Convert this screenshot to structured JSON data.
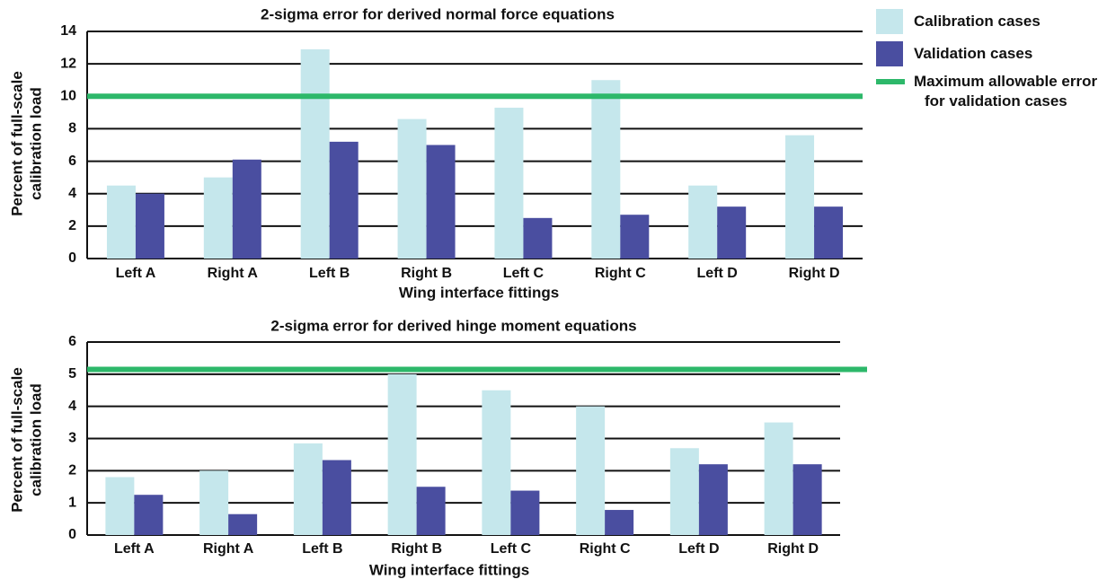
{
  "chart_data": [
    {
      "type": "bar",
      "title": "2-sigma error for derived normal force equations",
      "xlabel": "Wing interface fittings",
      "ylabel": [
        "Percent of full-scale",
        "calibration load"
      ],
      "categories": [
        "Left A",
        "Right A",
        "Left B",
        "Right B",
        "Left C",
        "Right C",
        "Left D",
        "Right D"
      ],
      "series": [
        {
          "name": "Calibration cases",
          "color": "#c5e7ec",
          "values": [
            4.5,
            5.0,
            12.9,
            8.6,
            9.3,
            11.0,
            4.5,
            7.6
          ]
        },
        {
          "name": "Validation cases",
          "color": "#4a4ea0",
          "values": [
            4.0,
            6.1,
            7.2,
            7.0,
            2.5,
            2.7,
            3.2,
            3.2
          ]
        }
      ],
      "threshold": {
        "name": "Maximum allowable error for validation cases",
        "value": 10,
        "color": "#2db86a"
      },
      "ylim": [
        0,
        14
      ],
      "yticks": [
        0,
        2,
        4,
        6,
        8,
        10,
        12,
        14
      ],
      "grid": true
    },
    {
      "type": "bar",
      "title": "2-sigma error for derived hinge moment equations",
      "xlabel": "Wing interface fittings",
      "ylabel": [
        "Percent of full-scale",
        "calibration load"
      ],
      "categories": [
        "Left A",
        "Right A",
        "Left B",
        "Right B",
        "Left C",
        "Right C",
        "Left D",
        "Right D"
      ],
      "series": [
        {
          "color": "#c5e7ec",
          "values": [
            1.8,
            2.0,
            2.85,
            5.0,
            4.5,
            4.0,
            2.7,
            3.5
          ]
        },
        {
          "color": "#4a4ea0",
          "values": [
            1.25,
            0.65,
            2.33,
            1.5,
            1.38,
            0.78,
            2.2,
            2.2
          ]
        }
      ],
      "threshold": {
        "value": 5.15,
        "color": "#2db86a"
      },
      "ylim": [
        0,
        6
      ],
      "yticks": [
        0,
        1,
        2,
        3,
        4,
        5,
        6
      ],
      "grid": true
    }
  ]
}
